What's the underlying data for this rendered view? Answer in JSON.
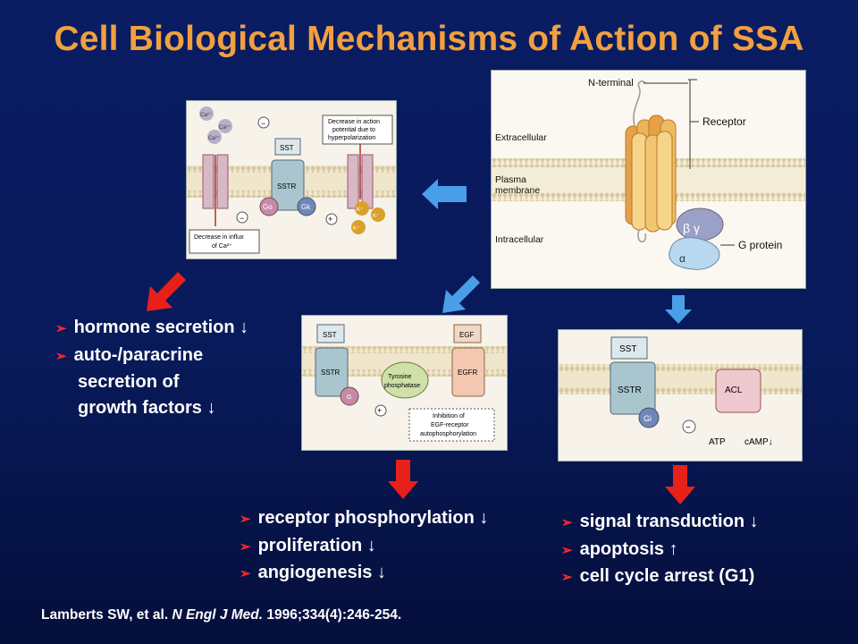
{
  "title": "Cell Biological Mechanisms of Action of SSA",
  "receptor_panel": {
    "n_terminal": "N-terminal",
    "receptor": "Receptor",
    "extracellular": "Extracellular",
    "plasma_line1": "Plasma",
    "plasma_line2": "membrane",
    "intracellular": "Intracellular",
    "beta_gamma": "β γ",
    "alpha": "α",
    "g_protein": "G protein"
  },
  "ion_panel": {
    "ca1": "Ca²⁺",
    "ca2": "Ca²⁺",
    "ca3": "Ca²⁺",
    "sst": "SST",
    "sstr": "SSTR",
    "go": "Go",
    "gk": "Gk",
    "k1": "K⁺",
    "k2": "K⁺",
    "k3": "K⁺",
    "minus1": "−",
    "minus2": "−",
    "plus": "+",
    "note1_line1": "Decrease in action",
    "note1_line2": "potential due to",
    "note1_line3": "hyperpolarization",
    "note2_line1": "Decrease in influx",
    "note2_line2": "of Ca²⁺"
  },
  "egf_panel": {
    "sst": "SST",
    "sstr": "SSTR",
    "g": "G",
    "tyrosine_line1": "Tyrosine",
    "tyrosine_line2": "phosphatase",
    "egf": "EGF",
    "egfr": "EGFR",
    "plus": "+",
    "note_line1": "Inhibition of",
    "note_line2": "EGF-receptor",
    "note_line3": "autophosphorylation"
  },
  "camp_panel": {
    "sst": "SST",
    "sstr": "SSTR",
    "gi": "Gi",
    "minus": "−",
    "acl": "ACL",
    "atp": "ATP",
    "camp": "cAMP↓"
  },
  "bullets_left": {
    "item1": "hormone secretion ↓",
    "item2": "auto-/paracrine",
    "item2_cont1": "secretion of",
    "item2_cont2": "growth factors ↓"
  },
  "bullets_middle": {
    "item1": "receptor phosphorylation ↓",
    "item2": "proliferation ↓",
    "item3": "angiogenesis ↓"
  },
  "bullets_right": {
    "item1": "signal transduction ↓",
    "item2": "apoptosis ↑",
    "item3": "cell cycle arrest (G1)"
  },
  "citation": {
    "authors": "Lamberts SW, et al.",
    "journal": "N Engl J Med.",
    "details": "1996;334(4):246-254."
  },
  "colors": {
    "title": "#f0a040",
    "bullet_marker": "#ff2a2a",
    "blue_arrow": "#4a9ee8",
    "red_arrow": "#e8201a"
  }
}
